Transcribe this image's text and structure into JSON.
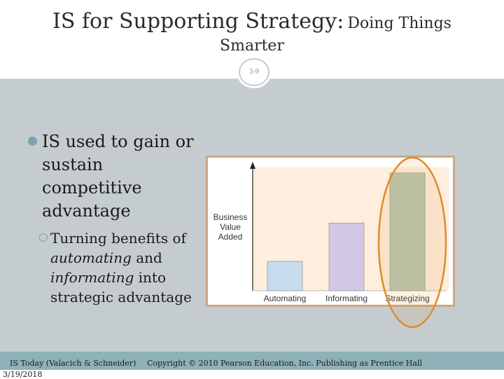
{
  "slide": {
    "title_main": "IS for Supporting Strategy:",
    "title_sub": "Doing Things",
    "title_line2": "Smarter",
    "page_number": "3-9"
  },
  "content": {
    "bullet_main": "IS used to gain or sustain competitive advantage",
    "sub_plain_1": "Turning benefits of ",
    "sub_italic_1": "automating",
    "sub_plain_2": " and ",
    "sub_italic_2": "informating",
    "sub_plain_3": " into strategic advantage"
  },
  "figure": {
    "y_label_lines": [
      "Business",
      "Value",
      "Added"
    ],
    "highlight_color": "#e08a2c"
  },
  "chart_data": {
    "type": "bar",
    "categories": [
      "Automating",
      "Informating",
      "Strategizing"
    ],
    "values": [
      1,
      2.3,
      4
    ],
    "ylabel": "Business Value Added",
    "bar_colors": [
      "#c7dcee",
      "#d2c8e6",
      "#b9c9b5"
    ],
    "highlighted_category": "Strategizing",
    "grid": false
  },
  "footer": {
    "source": "IS Today (Valacich & Schneider)",
    "date": "3/19/2018",
    "copyright": "Copyright © 2010 Pearson Education, Inc. Publishing as Prentice Hall"
  }
}
